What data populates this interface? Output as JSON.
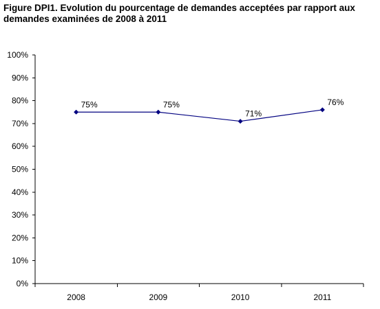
{
  "chart_data": {
    "type": "line",
    "title": "Figure DPI1. Evolution du pourcentage de demandes acceptées par rapport aux demandes examinées de 2008 à 2011",
    "categories": [
      "2008",
      "2009",
      "2010",
      "2011"
    ],
    "values": [
      75,
      75,
      71,
      76
    ],
    "data_labels": [
      "75%",
      "75%",
      "71%",
      "76%"
    ],
    "ylim": [
      0,
      100
    ],
    "yticks": [
      "0%",
      "10%",
      "20%",
      "30%",
      "40%",
      "50%",
      "60%",
      "70%",
      "80%",
      "90%",
      "100%"
    ],
    "xlabel": "",
    "ylabel": "",
    "grid": false,
    "legend": "none",
    "colors": {
      "series": "#000080",
      "axis": "#000000"
    }
  }
}
